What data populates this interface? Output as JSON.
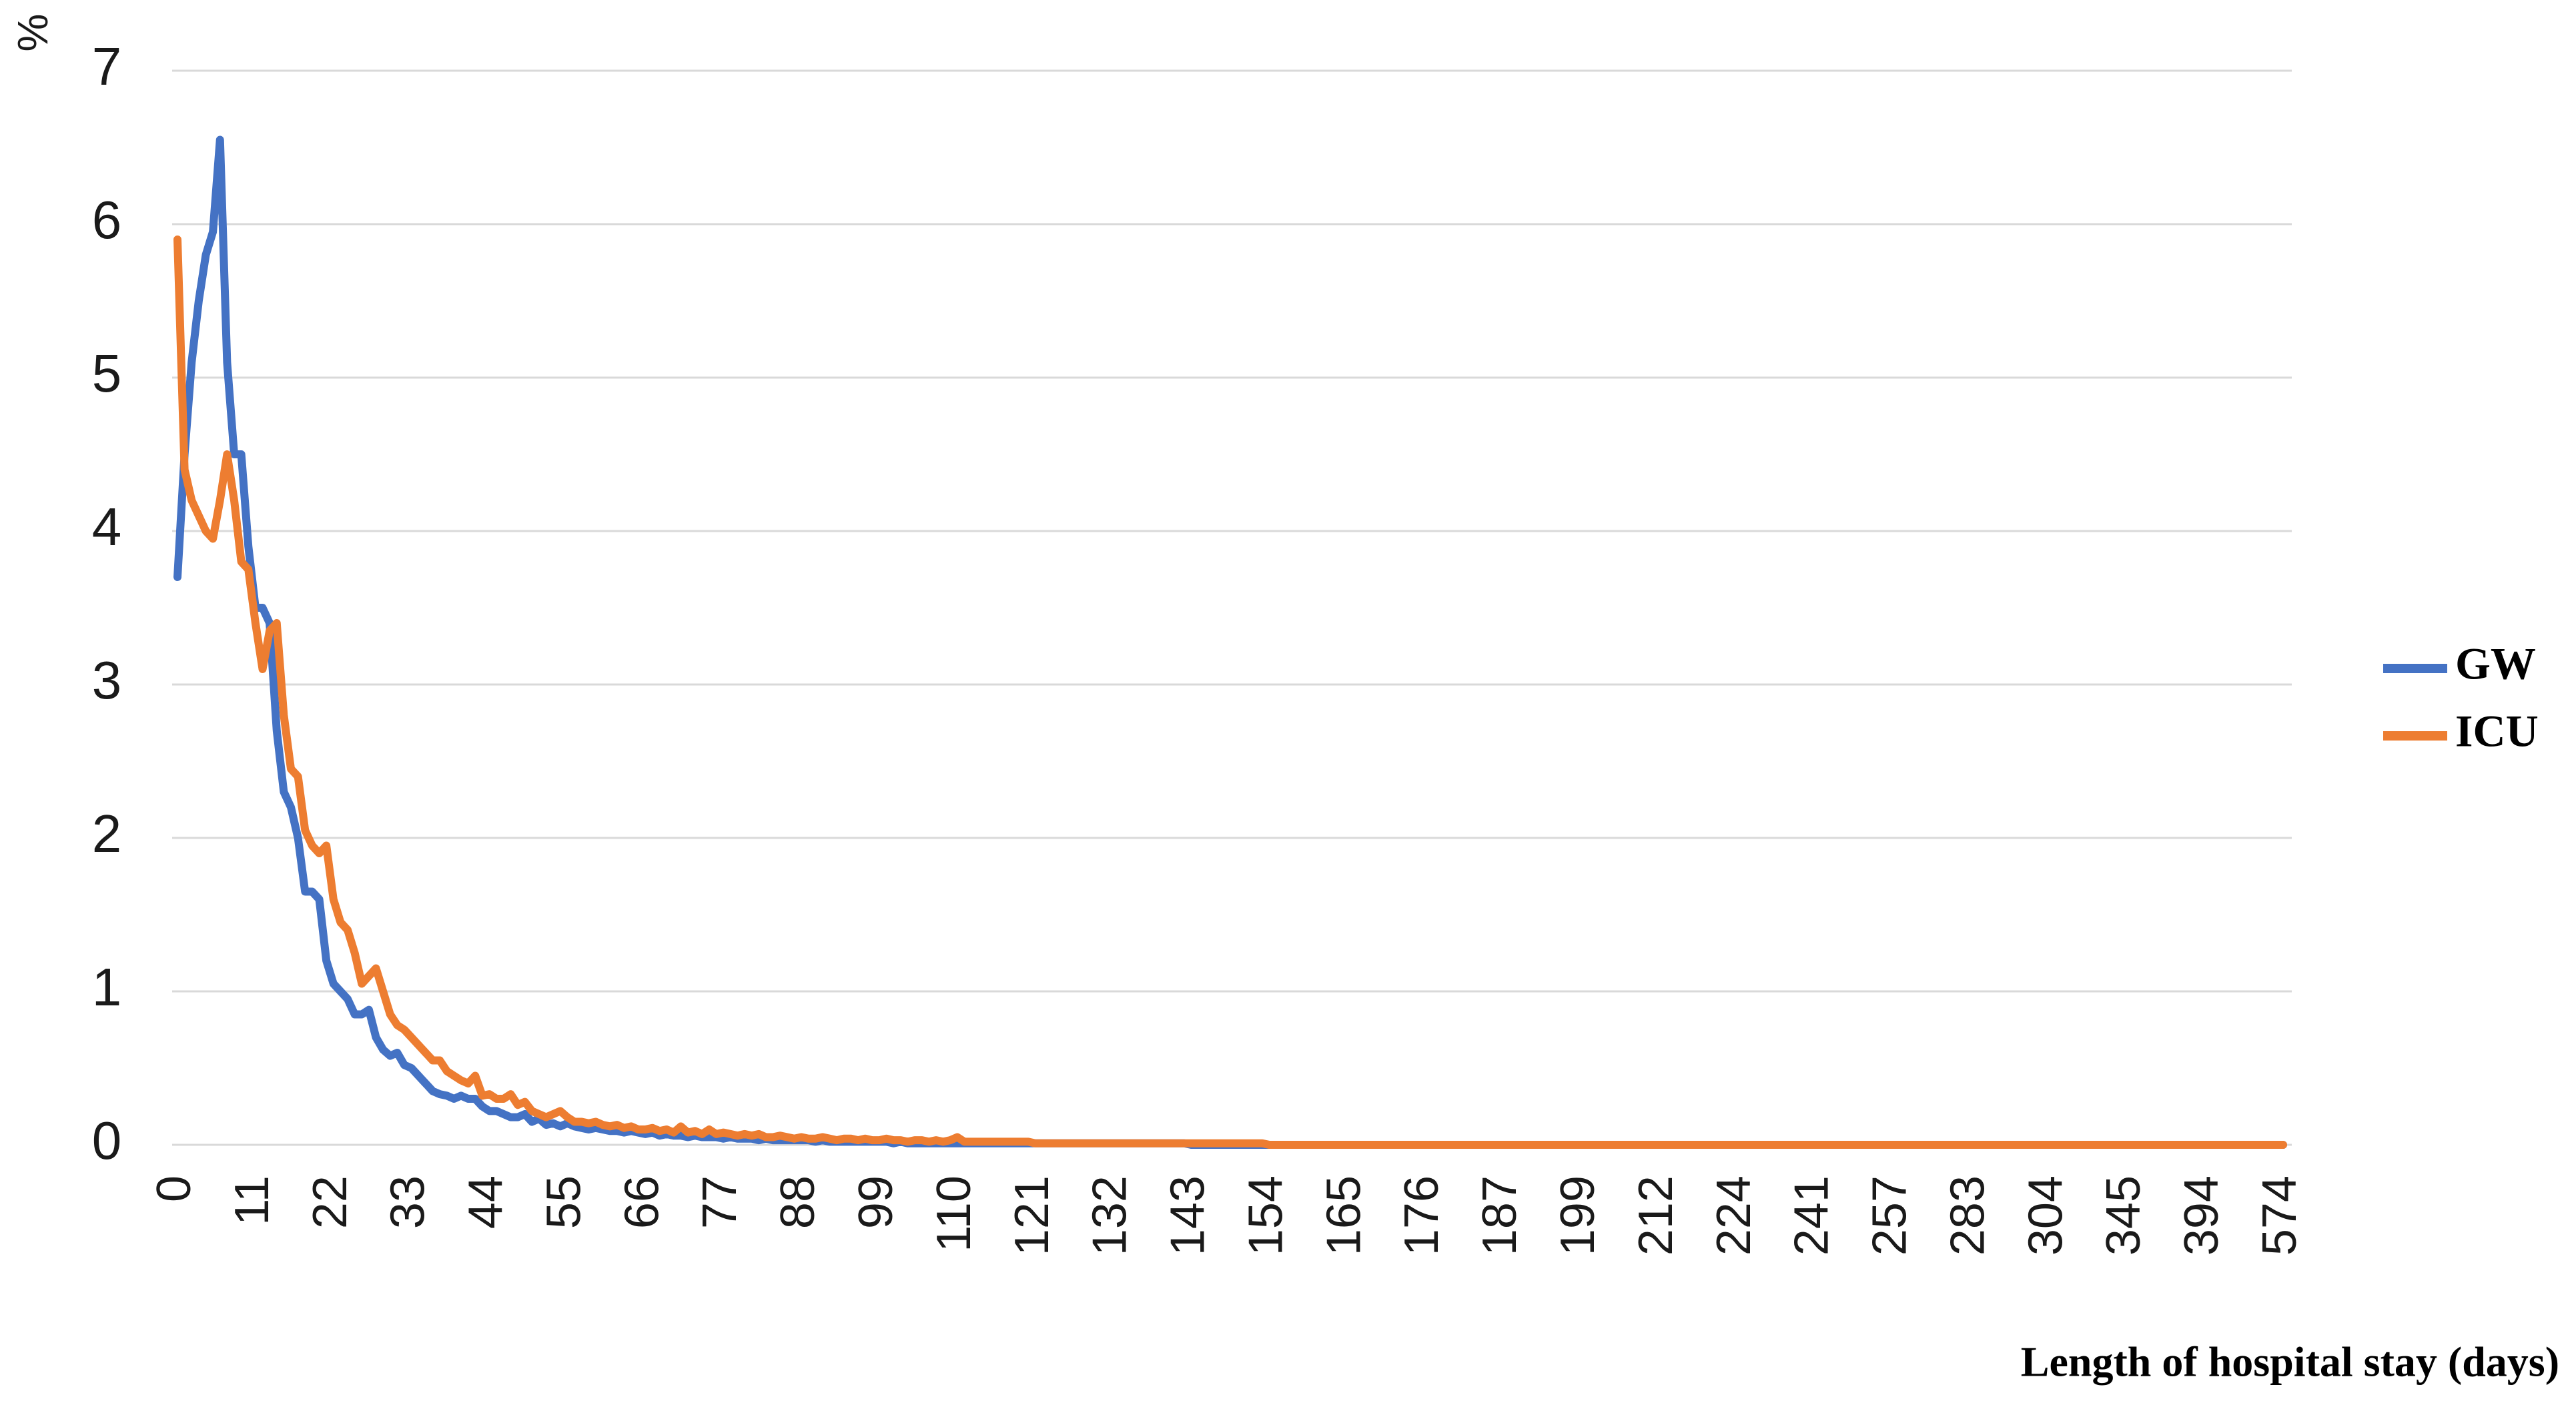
{
  "chart_data": {
    "type": "line",
    "y_label": "%",
    "x_label": "Length of hospital stay (days)",
    "ylim": [
      0,
      7
    ],
    "yticks": [
      0,
      1,
      2,
      3,
      4,
      5,
      6,
      7
    ],
    "grid": true,
    "legend": "right",
    "categories": [
      0,
      null,
      null,
      null,
      null,
      null,
      null,
      null,
      null,
      null,
      null,
      11,
      null,
      null,
      null,
      null,
      null,
      null,
      null,
      null,
      null,
      null,
      22,
      null,
      null,
      null,
      null,
      null,
      null,
      null,
      null,
      null,
      null,
      33,
      null,
      null,
      null,
      null,
      null,
      null,
      null,
      null,
      null,
      null,
      44,
      null,
      null,
      null,
      null,
      null,
      null,
      null,
      null,
      null,
      null,
      55,
      null,
      null,
      null,
      null,
      null,
      null,
      null,
      null,
      null,
      null,
      66,
      null,
      null,
      null,
      null,
      null,
      null,
      null,
      null,
      null,
      null,
      77,
      null,
      null,
      null,
      null,
      null,
      null,
      null,
      null,
      null,
      null,
      88,
      null,
      null,
      null,
      null,
      null,
      null,
      null,
      null,
      null,
      null,
      99,
      null,
      null,
      null,
      null,
      null,
      null,
      null,
      null,
      null,
      null,
      110,
      null,
      null,
      null,
      null,
      null,
      null,
      null,
      null,
      null,
      null,
      121,
      null,
      null,
      null,
      null,
      null,
      null,
      null,
      null,
      null,
      null,
      132,
      null,
      null,
      null,
      null,
      null,
      null,
      null,
      null,
      null,
      null,
      143,
      null,
      null,
      null,
      null,
      null,
      null,
      null,
      null,
      null,
      null,
      154,
      null,
      null,
      null,
      null,
      null,
      null,
      null,
      null,
      null,
      null,
      165,
      null,
      null,
      null,
      null,
      null,
      null,
      null,
      null,
      null,
      null,
      176,
      null,
      null,
      null,
      null,
      null,
      null,
      null,
      null,
      null,
      null,
      187,
      null,
      null,
      null,
      null,
      null,
      null,
      null,
      null,
      null,
      null,
      199,
      null,
      null,
      null,
      null,
      null,
      null,
      null,
      null,
      null,
      null,
      212,
      null,
      null,
      null,
      null,
      null,
      null,
      null,
      null,
      null,
      null,
      224,
      null,
      null,
      null,
      null,
      null,
      null,
      null,
      null,
      null,
      null,
      241,
      null,
      null,
      null,
      null,
      null,
      null,
      null,
      null,
      null,
      null,
      257,
      null,
      null,
      null,
      null,
      null,
      null,
      null,
      null,
      null,
      null,
      283,
      null,
      null,
      null,
      null,
      null,
      null,
      null,
      null,
      null,
      null,
      304,
      null,
      null,
      null,
      null,
      null,
      null,
      null,
      null,
      null,
      null,
      345,
      null,
      null,
      null,
      null,
      null,
      null,
      null,
      null,
      null,
      null,
      394,
      null,
      null,
      null,
      null,
      null,
      null,
      null,
      null,
      null,
      null,
      574
    ],
    "series": [
      {
        "name": "GW",
        "color": "#4472c4",
        "values": [
          3.7,
          4.5,
          5.1,
          5.5,
          5.8,
          5.95,
          6.55,
          5.1,
          4.5,
          4.5,
          3.9,
          3.5,
          3.5,
          3.4,
          2.7,
          2.3,
          2.2,
          2.0,
          1.65,
          1.65,
          1.6,
          1.2,
          1.05,
          1.0,
          0.95,
          0.85,
          0.85,
          0.88,
          0.7,
          0.62,
          0.58,
          0.6,
          0.52,
          0.5,
          0.45,
          0.4,
          0.35,
          0.33,
          0.32,
          0.3,
          0.32,
          0.3,
          0.3,
          0.25,
          0.22,
          0.22,
          0.2,
          0.18,
          0.18,
          0.2,
          0.15,
          0.17,
          0.13,
          0.14,
          0.12,
          0.14,
          0.12,
          0.11,
          0.1,
          0.11,
          0.1,
          0.09,
          0.09,
          0.08,
          0.09,
          0.08,
          0.07,
          0.08,
          0.06,
          0.07,
          0.06,
          0.06,
          0.05,
          0.06,
          0.05,
          0.05,
          0.05,
          0.04,
          0.05,
          0.04,
          0.04,
          0.04,
          0.03,
          0.04,
          0.03,
          0.03,
          0.03,
          0.03,
          0.03,
          0.03,
          0.02,
          0.03,
          0.02,
          0.02,
          0.02,
          0.02,
          0.02,
          0.02,
          0.02,
          0.02,
          0.02,
          0.01,
          0.02,
          0.01,
          0.01,
          0.01,
          0.01,
          0.01,
          0.01,
          0.01,
          0.01,
          0.01,
          0.01,
          0.01,
          0.01,
          0.01,
          0.01,
          0.01,
          0.01,
          0.01,
          0.01,
          0.01,
          0.01,
          0.01,
          0.01,
          0.01,
          0.01,
          0.01,
          0.01,
          0.01,
          0.01,
          0.01,
          0.01,
          0.01,
          0.01,
          0.01,
          0.01,
          0.01,
          0.01,
          0.01,
          0.01,
          0.01,
          0.01,
          0,
          0,
          0,
          0,
          0,
          0,
          0,
          0,
          0,
          0,
          0,
          0,
          0,
          0,
          0,
          0,
          0,
          0,
          0,
          0,
          0,
          0,
          0,
          0,
          0,
          0,
          0,
          0,
          0,
          0,
          0,
          0,
          0,
          0,
          0,
          0,
          0,
          0,
          0,
          0,
          0,
          0,
          0,
          0,
          0,
          0,
          0,
          0,
          0,
          0,
          0,
          0,
          0,
          0,
          0,
          0,
          0,
          0,
          0,
          0,
          0,
          0,
          0,
          0,
          0,
          0,
          0,
          0,
          0,
          0,
          0,
          0,
          0,
          0,
          0,
          0,
          0,
          0,
          0,
          0,
          0,
          0,
          0,
          0,
          0,
          0,
          0,
          0,
          0,
          0,
          0,
          0,
          0,
          0,
          0,
          0,
          0,
          0,
          0,
          0,
          0,
          0,
          0,
          0,
          0,
          0,
          0,
          0,
          0,
          0,
          0,
          0,
          0,
          0,
          0,
          0,
          0,
          0,
          0,
          0,
          0,
          0,
          0,
          0,
          0,
          0,
          0,
          0,
          0,
          0,
          0,
          0,
          0,
          0,
          0,
          0,
          0,
          0,
          0,
          0,
          0,
          0,
          0,
          0,
          0,
          0,
          0,
          0,
          0,
          0,
          0,
          0,
          0,
          0,
          0
        ]
      },
      {
        "name": "ICU",
        "color": "#ed7d31",
        "values": [
          5.9,
          4.4,
          4.2,
          4.1,
          4.0,
          3.95,
          4.2,
          4.5,
          4.2,
          3.8,
          3.75,
          3.4,
          3.1,
          3.35,
          3.4,
          2.8,
          2.45,
          2.4,
          2.05,
          1.95,
          1.9,
          1.95,
          1.6,
          1.45,
          1.4,
          1.25,
          1.05,
          1.1,
          1.15,
          1.0,
          0.85,
          0.78,
          0.75,
          0.7,
          0.65,
          0.6,
          0.55,
          0.55,
          0.48,
          0.45,
          0.42,
          0.4,
          0.45,
          0.32,
          0.33,
          0.3,
          0.3,
          0.33,
          0.26,
          0.28,
          0.22,
          0.2,
          0.18,
          0.2,
          0.22,
          0.18,
          0.15,
          0.15,
          0.14,
          0.15,
          0.13,
          0.12,
          0.13,
          0.11,
          0.12,
          0.1,
          0.1,
          0.11,
          0.09,
          0.1,
          0.08,
          0.12,
          0.08,
          0.09,
          0.07,
          0.1,
          0.07,
          0.08,
          0.07,
          0.06,
          0.07,
          0.06,
          0.07,
          0.05,
          0.05,
          0.06,
          0.05,
          0.04,
          0.05,
          0.04,
          0.04,
          0.05,
          0.04,
          0.03,
          0.04,
          0.04,
          0.03,
          0.04,
          0.03,
          0.03,
          0.04,
          0.03,
          0.03,
          0.02,
          0.03,
          0.03,
          0.02,
          0.03,
          0.02,
          0.03,
          0.05,
          0.02,
          0.02,
          0.02,
          0.02,
          0.02,
          0.02,
          0.02,
          0.02,
          0.02,
          0.02,
          0.01,
          0.01,
          0.01,
          0.01,
          0.01,
          0.01,
          0.01,
          0.01,
          0.01,
          0.01,
          0.01,
          0.01,
          0.01,
          0.01,
          0.01,
          0.01,
          0.01,
          0.01,
          0.01,
          0.01,
          0.01,
          0.01,
          0.01,
          0.01,
          0.01,
          0.01,
          0.01,
          0.01,
          0.01,
          0.01,
          0.01,
          0.01,
          0.01,
          0,
          0,
          0,
          0,
          0,
          0,
          0,
          0,
          0,
          0,
          0,
          0,
          0,
          0,
          0,
          0,
          0,
          0,
          0,
          0,
          0,
          0,
          0,
          0,
          0,
          0,
          0,
          0,
          0,
          0,
          0,
          0,
          0,
          0,
          0,
          0,
          0,
          0,
          0,
          0,
          0,
          0,
          0,
          0,
          0,
          0,
          0,
          0,
          0,
          0,
          0,
          0,
          0,
          0,
          0,
          0,
          0,
          0,
          0,
          0,
          0,
          0,
          0,
          0,
          0,
          0,
          0,
          0,
          0,
          0,
          0,
          0,
          0,
          0,
          0,
          0,
          0,
          0,
          0,
          0,
          0,
          0,
          0,
          0,
          0,
          0,
          0,
          0,
          0,
          0,
          0,
          0,
          0,
          0,
          0,
          0,
          0,
          0,
          0,
          0,
          0,
          0,
          0,
          0,
          0,
          0,
          0,
          0,
          0,
          0,
          0,
          0,
          0,
          0,
          0,
          0,
          0,
          0,
          0,
          0,
          0,
          0,
          0,
          0,
          0,
          0,
          0,
          0,
          0,
          0,
          0,
          0,
          0,
          0,
          0,
          0,
          0,
          0,
          0,
          0,
          0,
          0,
          0,
          0
        ]
      }
    ]
  }
}
